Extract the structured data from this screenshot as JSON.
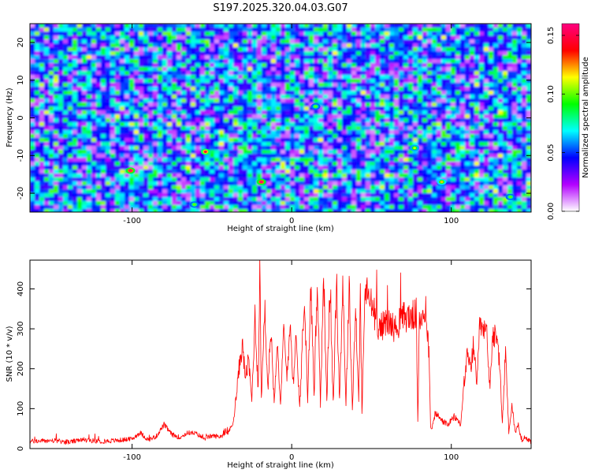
{
  "title": "S197.2025.320.04.03.G07",
  "chart_data": [
    {
      "type": "heatmap",
      "title": "S197.2025.320.04.03.G07",
      "xlabel": "Height of straight line (km)",
      "ylabel": "Frequency (Hz)",
      "xlim": [
        -164,
        150
      ],
      "ylim": [
        -25,
        25
      ],
      "xticks": [
        -100,
        0,
        100
      ],
      "yticks": [
        -20,
        -10,
        0,
        10,
        20
      ],
      "xtick_labels": [
        "-100",
        "0",
        "100"
      ],
      "ytick_labels": [
        "-20",
        "-10",
        "0",
        "10",
        "20"
      ],
      "colorbar": {
        "label": "Normalized spectral amplitude",
        "range": [
          0.0,
          0.16
        ],
        "ticks": [
          0.0,
          0.05,
          0.1,
          0.15
        ],
        "tick_labels": [
          "0.00",
          "0.05",
          "0.10",
          "0.15"
        ],
        "colors": [
          "#ffffff",
          "#b300ff",
          "#0000ff",
          "#00ffff",
          "#00ff00",
          "#ffff00",
          "#ff0000",
          "#ff0080"
        ]
      },
      "peaks": [
        {
          "x": -101,
          "y": -14,
          "value": 0.16
        },
        {
          "x": -54,
          "y": -9,
          "value": 0.15
        },
        {
          "x": -19,
          "y": -17,
          "value": 0.16
        },
        {
          "x": 77,
          "y": -8,
          "value": 0.11
        },
        {
          "x": 94,
          "y": -17,
          "value": 0.12
        },
        {
          "x": 15,
          "y": 3,
          "value": 0.1
        },
        {
          "x": -61,
          "y": -23,
          "value": 0.1
        },
        {
          "x": 137,
          "y": -21,
          "value": 0.1
        }
      ]
    },
    {
      "type": "line",
      "xlabel": "Height of straight line (km)",
      "ylabel": "SNR (10 * v/v)",
      "xlim": [
        -164,
        150
      ],
      "ylim": [
        0,
        472
      ],
      "xticks": [
        -100,
        0,
        100
      ],
      "yticks": [
        0,
        100,
        200,
        300,
        400
      ],
      "xtick_labels": [
        "-100",
        "0",
        "100"
      ],
      "ytick_labels": [
        "0",
        "100",
        "200",
        "300",
        "400"
      ],
      "series": [
        {
          "name": "SNR",
          "color": "#ff0000",
          "x": [
            -164,
            -150,
            -140,
            -130,
            -120,
            -110,
            -100,
            -95,
            -90,
            -85,
            -80,
            -75,
            -70,
            -65,
            -60,
            -55,
            -50,
            -45,
            -40,
            -37,
            -35,
            -33,
            -31,
            -29,
            -27,
            -25,
            -23,
            -21,
            -20,
            -19,
            -17,
            -15,
            -13,
            -11,
            -9,
            -7,
            -5,
            -3,
            -1,
            1,
            3,
            5,
            8,
            10,
            12,
            14,
            16,
            18,
            20,
            22,
            24,
            26,
            28,
            30,
            32,
            34,
            36,
            38,
            40,
            42,
            43,
            44,
            46,
            50,
            55,
            60,
            65,
            70,
            75,
            78,
            79,
            80,
            82,
            84,
            86,
            87,
            88,
            90,
            94,
            98,
            102,
            106,
            108,
            110,
            112,
            114,
            116,
            118,
            120,
            122,
            124,
            126,
            128,
            130,
            132,
            134,
            136,
            138,
            140,
            142,
            144,
            146,
            150
          ],
          "y": [
            18,
            20,
            16,
            22,
            18,
            20,
            24,
            40,
            22,
            30,
            60,
            35,
            28,
            40,
            38,
            25,
            32,
            30,
            40,
            60,
            120,
            200,
            260,
            180,
            220,
            120,
            330,
            150,
            460,
            120,
            360,
            150,
            300,
            120,
            280,
            100,
            300,
            180,
            320,
            160,
            290,
            100,
            380,
            110,
            420,
            120,
            430,
            110,
            440,
            120,
            410,
            110,
            400,
            120,
            420,
            110,
            410,
            100,
            350,
            120,
            380,
            90,
            400,
            360,
            300,
            320,
            300,
            330,
            330,
            340,
            70,
            310,
            340,
            350,
            240,
            60,
            50,
            90,
            70,
            60,
            80,
            60,
            170,
            230,
            200,
            260,
            150,
            320,
            280,
            300,
            150,
            290,
            270,
            230,
            60,
            250,
            40,
            110,
            40,
            60,
            20,
            30,
            15
          ]
        }
      ]
    }
  ]
}
